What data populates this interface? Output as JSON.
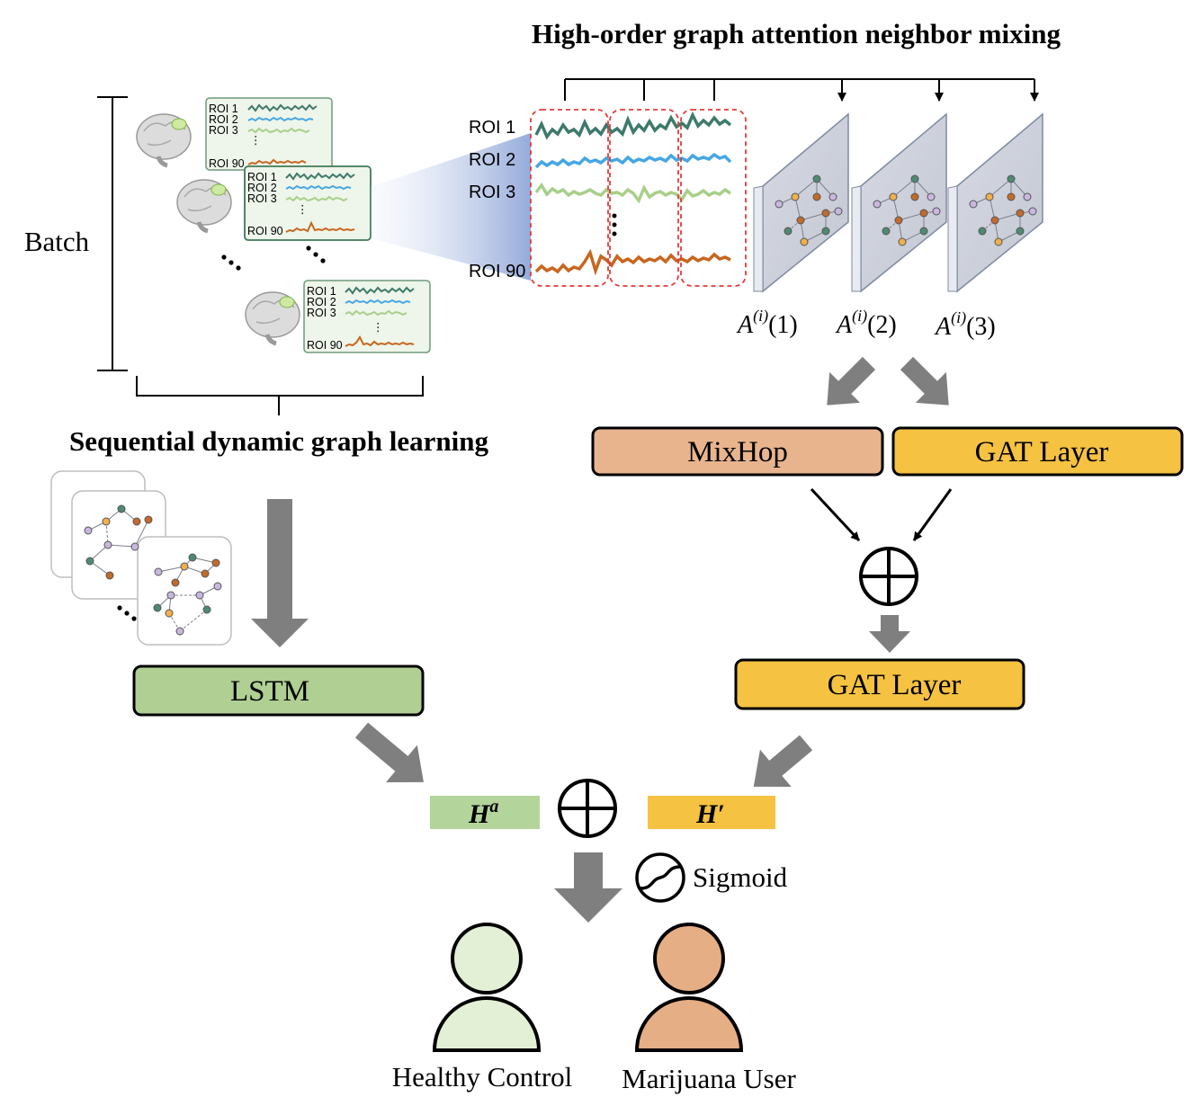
{
  "titles": {
    "high_order": "High-order graph attention neighbor mixing",
    "sequential": "Sequential  dynamic graph learning",
    "batch": "Batch"
  },
  "roi_labels": {
    "roi1": "ROI 1",
    "roi2": "ROI 2",
    "roi3": "ROI 3",
    "roi90": "ROI 90",
    "ellipsis": "⋮"
  },
  "adjacency": {
    "symbol": "A",
    "superscript": "(i)",
    "orders": [
      "(1)",
      "(2)",
      "(3)"
    ]
  },
  "modules": {
    "mixhop": "MixHop",
    "gat_top": "GAT Layer",
    "gat_bottom": "GAT Layer",
    "lstm": "LSTM"
  },
  "embeddings": {
    "h_a_base": "H",
    "h_a_sup": "a",
    "h_prime": "H′"
  },
  "operators": {
    "concat_symbol": "⊕"
  },
  "activation": "Sigmoid",
  "outputs": {
    "healthy": "Healthy Control",
    "marijuana": "Marijuana User"
  },
  "colors": {
    "mixhop": "#e8b48e",
    "gat": "#f5c242",
    "lstm": "#afcf93",
    "h_a": "#b3d49a",
    "h_prime": "#f5c242",
    "healthy": "#e3f0d6",
    "marijuana": "#e6ae84",
    "arrow_gray": "#7f7f7f",
    "roi1_line": "#3e7a6c",
    "roi2_line": "#45a6e4",
    "roi3_line": "#a8cf8a",
    "roi90_line": "#c8661f",
    "window_dash": "#e23b3b"
  }
}
